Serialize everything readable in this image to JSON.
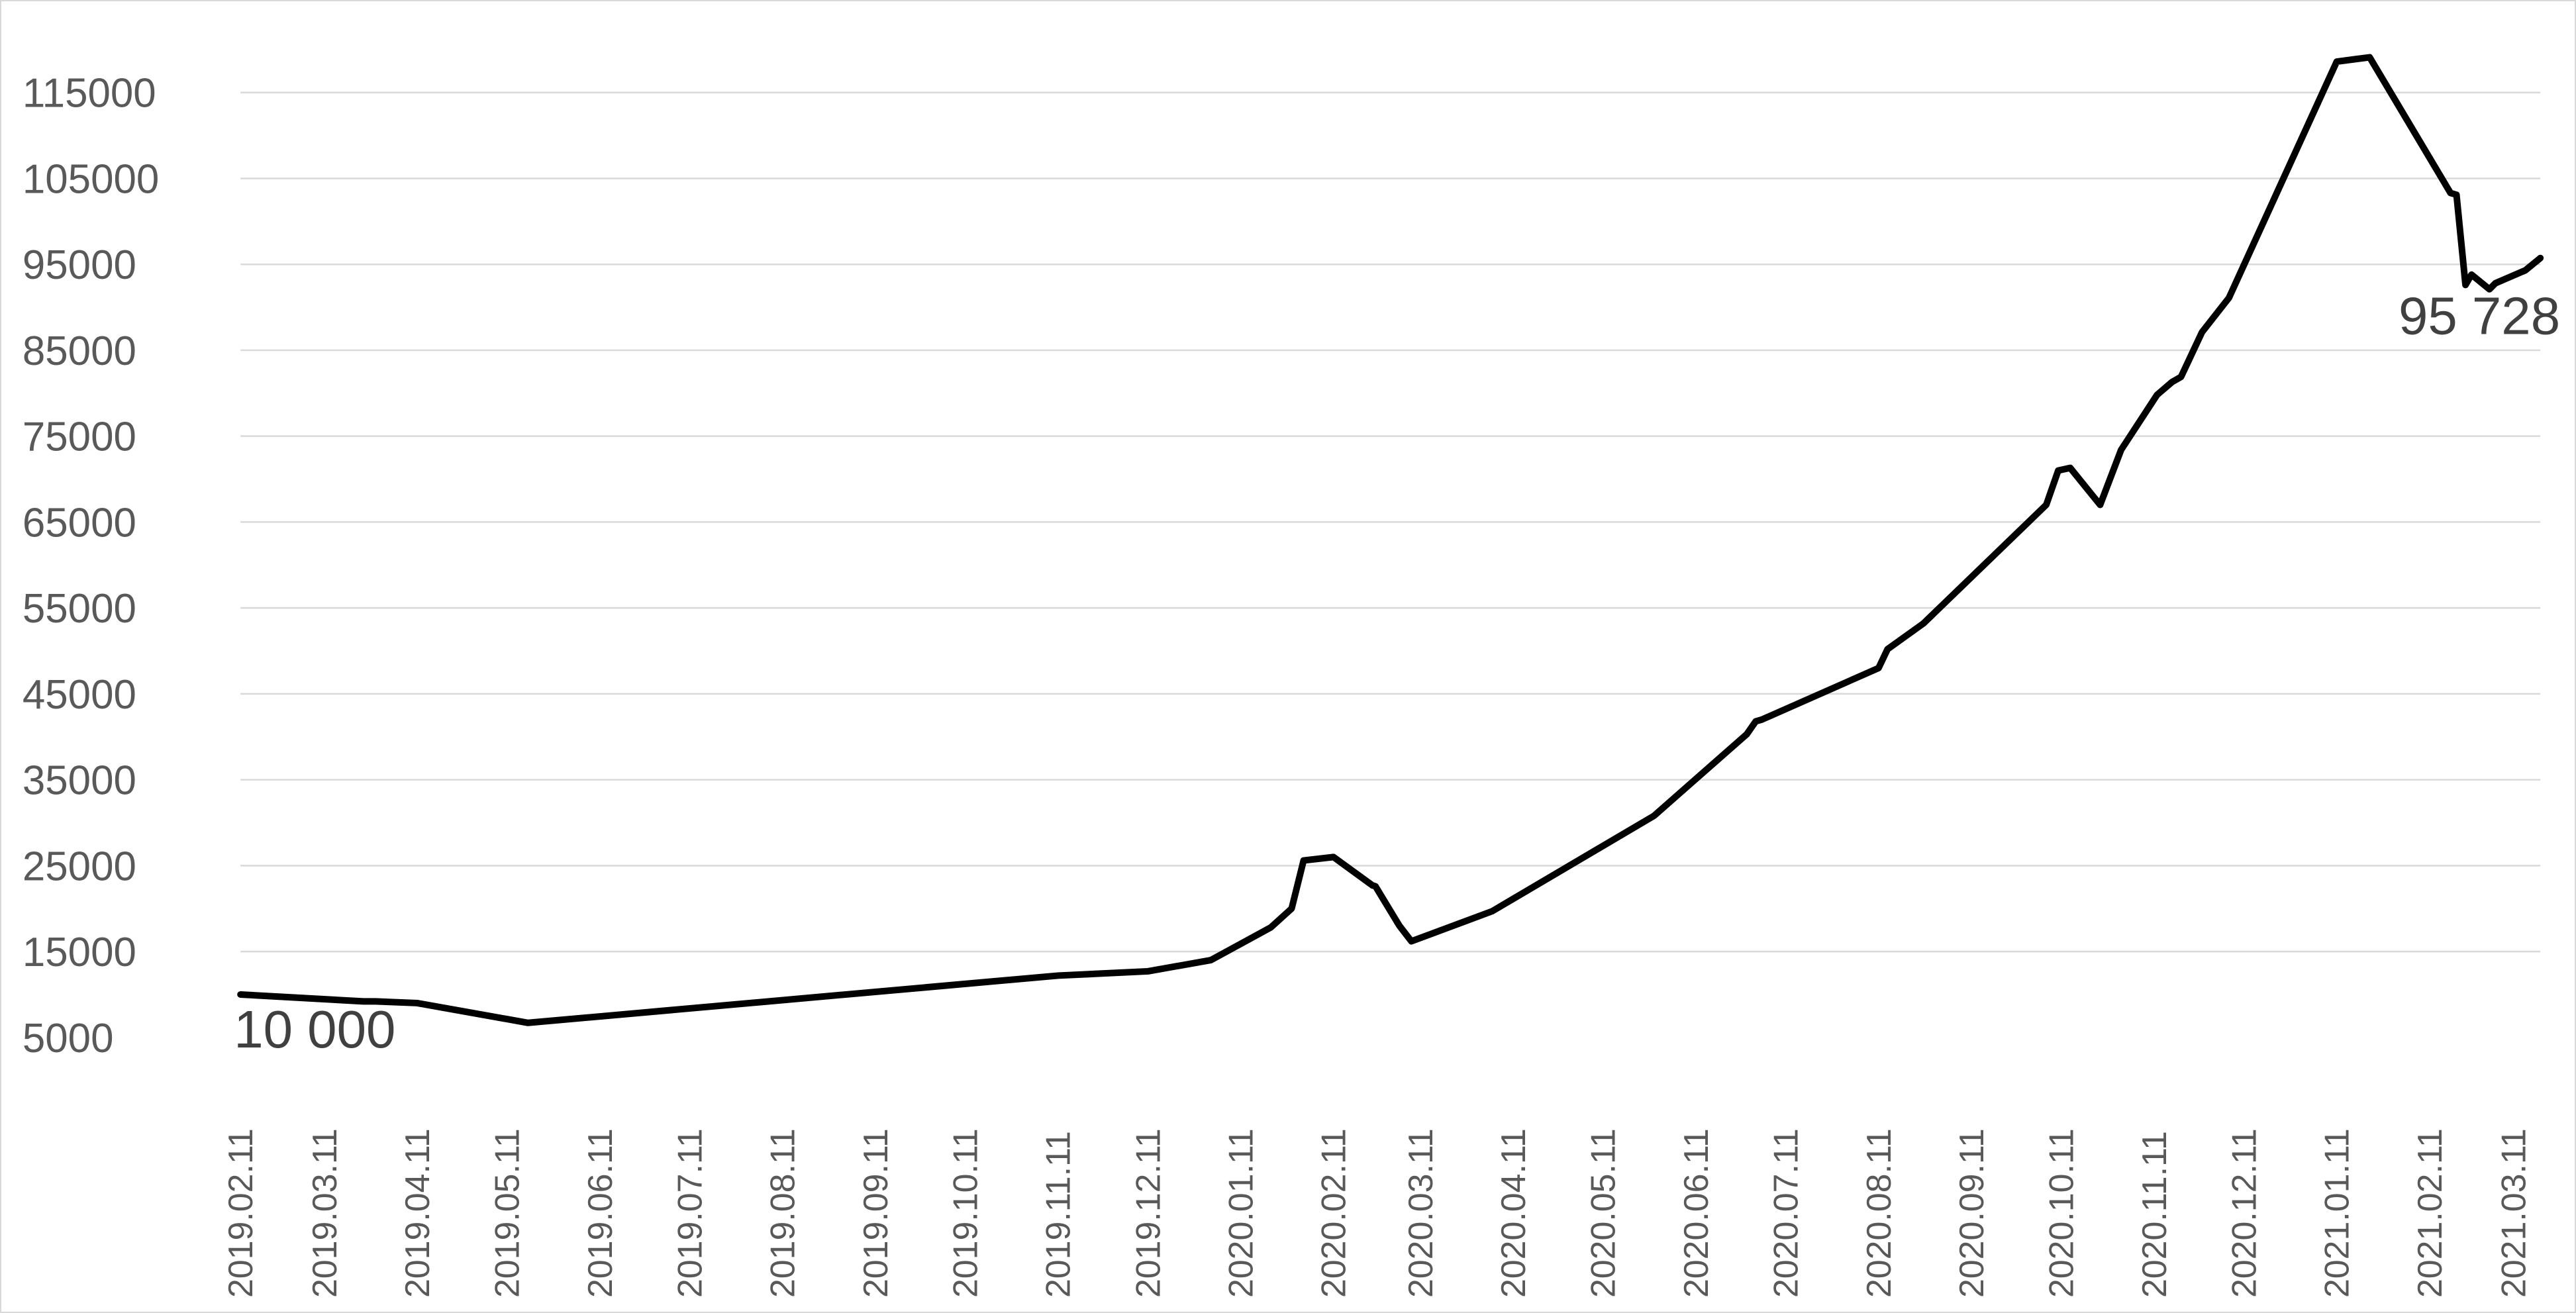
{
  "chart_data": {
    "type": "line",
    "title": "",
    "xlabel": "",
    "ylabel": "",
    "ylim": [
      5000,
      120000
    ],
    "y_ticks": [
      5000,
      15000,
      25000,
      35000,
      45000,
      55000,
      65000,
      75000,
      85000,
      95000,
      105000,
      115000
    ],
    "x_tick_labels": [
      "2019.02.11",
      "2019.03.11",
      "2019.04.11",
      "2019.05.11",
      "2019.06.11",
      "2019.07.11",
      "2019.08.11",
      "2019.09.11",
      "2019.10.11",
      "2019.11.11",
      "2019.12.11",
      "2020.01.11",
      "2020.02.11",
      "2020.03.11",
      "2020.04.11",
      "2020.05.11",
      "2020.06.11",
      "2020.07.11",
      "2020.08.11",
      "2020.09.11",
      "2020.10.11",
      "2020.11.11",
      "2020.12.11",
      "2021.01.11",
      "2021.02.11",
      "2021.03.11"
    ],
    "grid": true,
    "legend": "none",
    "line_color": "#000000",
    "series": [
      {
        "x": [
          "2019.02.11",
          "2019.03.24",
          "2019.03.28",
          "2019.04.11",
          "2019.05.18",
          "2019.11.11",
          "2019.12.11",
          "2020.01.01",
          "2020.01.21",
          "2020.01.28",
          "2020.02.01",
          "2020.02.11",
          "2020.02.24",
          "2020.02.25",
          "2020.03.04",
          "2020.03.08",
          "2020.03.15",
          "2020.04.04",
          "2020.05.28",
          "2020.06.28",
          "2020.07.01",
          "2020.07.03",
          "2020.08.11",
          "2020.08.14",
          "2020.08.26",
          "2020.10.06",
          "2020.10.10",
          "2020.10.14",
          "2020.10.24",
          "2020.10.31",
          "2020.11.12",
          "2020.11.17",
          "2020.11.20",
          "2020.11.27",
          "2020.12.06",
          "2021.01.11",
          "2021.01.22",
          "2021.02.18",
          "2021.02.20",
          "2021.02.23",
          "2021.02.25",
          "2021.03.03",
          "2021.03.05",
          "2021.03.15",
          "2021.03.20"
        ],
        "y": [
          10000,
          9200,
          9200,
          9000,
          6700,
          12200,
          12700,
          14000,
          17800,
          20000,
          25600,
          26000,
          22700,
          22600,
          18000,
          16200,
          17100,
          19700,
          30800,
          40300,
          41800,
          42000,
          48000,
          50200,
          53200,
          67000,
          71000,
          71300,
          67000,
          73400,
          79800,
          81300,
          81900,
          87100,
          91100,
          118600,
          119100,
          103300,
          103100,
          92600,
          93800,
          92100,
          92800,
          94300,
          95728
        ]
      }
    ],
    "annotations": [
      {
        "text": "10 000",
        "x": "2019.02.11",
        "y": 10000
      },
      {
        "text": "95 728",
        "x": "2021.03.20",
        "y": 95728
      }
    ]
  }
}
